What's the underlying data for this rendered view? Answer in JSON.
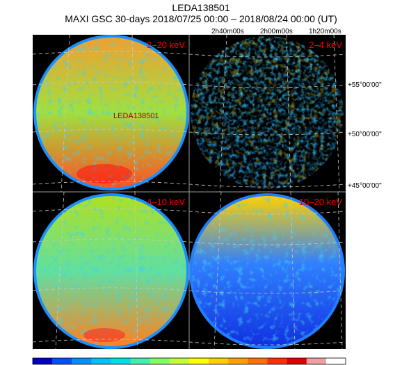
{
  "header": {
    "title": "LEDA138501",
    "subtitle": "MAXI GSC 30-days 2018/07/25 00:00 – 2018/08/24 00:00 (UT)"
  },
  "axes": {
    "ra_labels": [
      "2h40m00s",
      "2h00m00s",
      "1h20m00s"
    ],
    "dec_labels": [
      "+55°00'00\"",
      "+50°00'00\"",
      "+45°00'00\""
    ]
  },
  "panels": [
    {
      "band": "2–20 keV",
      "source_label": "LEDA138501",
      "top_color": "#f0a030",
      "mid_color": "#a0e040",
      "bottom_color": "#ff5020"
    },
    {
      "band": "2–4 keV",
      "source_label": "",
      "top_color": "#30c0f0",
      "mid_color": "#20b0f0",
      "bottom_color": "#20a0f0"
    },
    {
      "band": "4–10 keV",
      "source_label": "",
      "top_color": "#b0e020",
      "mid_color": "#60e0a0",
      "bottom_color": "#ff8020"
    },
    {
      "band": "10–20 keV",
      "source_label": "",
      "top_color": "#ffd000",
      "mid_color": "#3080ff",
      "bottom_color": "#1030e0"
    }
  ],
  "colorbar": {
    "colors": [
      "#0000c8",
      "#0050ff",
      "#0090ff",
      "#00c0ff",
      "#00e0e0",
      "#40f0b0",
      "#80ff60",
      "#c0ff30",
      "#ffff00",
      "#ffd000",
      "#ffa000",
      "#ff7000",
      "#ff3000",
      "#e00000",
      "#f0a0a0",
      "#ffffff"
    ]
  }
}
